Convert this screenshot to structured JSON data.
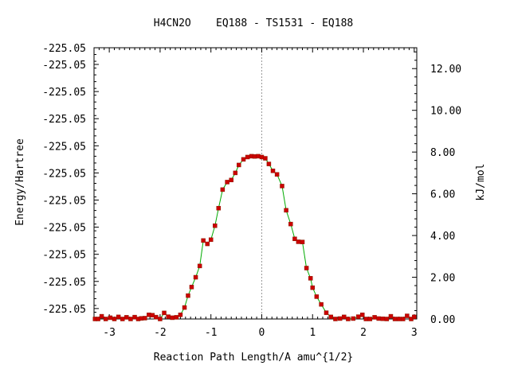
{
  "chart_data": {
    "type": "line",
    "title": "H4CN2O    EQ188 - TS1531 - EQ188",
    "xlabel": "Reaction Path Length/A amu^{1/2}",
    "ylabel_left": "Energy/Hartree",
    "ylabel_right": "kJ/mol",
    "xlim": [
      -3.3,
      3.05
    ],
    "ylim_right": [
      0,
      13.0
    ],
    "x_ticks": [
      -3,
      -2,
      -1,
      0,
      1,
      2,
      3
    ],
    "x_tick_labels": [
      "-3",
      "-2",
      "-1",
      "0",
      "1",
      "2",
      "3"
    ],
    "left_tick_values": [
      0.5,
      1.8,
      3.1,
      4.4,
      5.7,
      7.0,
      8.3,
      9.6,
      10.9,
      12.2,
      13.0
    ],
    "left_tick_labels": [
      "-225.05",
      "-225.05",
      "-225.05",
      "-225.05",
      "-225.05",
      "-225.05",
      "-225.05",
      "-225.05",
      "-225.05",
      "-225.05",
      "-225.05"
    ],
    "right_ticks": [
      0,
      2,
      4,
      6,
      8,
      10,
      12
    ],
    "right_tick_labels": [
      "0.00",
      "2.00",
      "4.00",
      "6.00",
      "8.00",
      "10.00",
      "12.00"
    ],
    "ts_x": 0.0,
    "series": [
      {
        "line_color": "#00aa00",
        "marker_color": "#cc0000",
        "x": [
          -3.28,
          -3.22,
          -3.15,
          -3.07,
          -2.98,
          -2.9,
          -2.82,
          -2.74,
          -2.66,
          -2.58,
          -2.5,
          -2.43,
          -2.37,
          -2.3,
          -2.22,
          -2.15,
          -2.08,
          -2.0,
          -1.92,
          -1.84,
          -1.76,
          -1.68,
          -1.6,
          -1.52,
          -1.45,
          -1.38,
          -1.3,
          -1.22,
          -1.15,
          -1.07,
          -1.0,
          -0.92,
          -0.85,
          -0.77,
          -0.68,
          -0.6,
          -0.52,
          -0.45,
          -0.36,
          -0.28,
          -0.2,
          -0.14,
          -0.07,
          0.0,
          0.07,
          0.14,
          0.22,
          0.3,
          0.4,
          0.48,
          0.57,
          0.65,
          0.72,
          0.8,
          0.88,
          0.96,
          1.0,
          1.08,
          1.17,
          1.27,
          1.36,
          1.45,
          1.54,
          1.62,
          1.7,
          1.8,
          1.9,
          1.98,
          2.05,
          2.13,
          2.22,
          2.3,
          2.38,
          2.46,
          2.54,
          2.62,
          2.7,
          2.78,
          2.86,
          2.94,
          3.0
        ],
        "y": [
          0.0,
          0.0,
          0.13,
          0.0,
          0.06,
          0.0,
          0.1,
          0.0,
          0.08,
          0.0,
          0.09,
          0.0,
          0.03,
          0.04,
          0.2,
          0.18,
          0.09,
          0.0,
          0.29,
          0.11,
          0.06,
          0.08,
          0.2,
          0.55,
          1.12,
          1.53,
          2.0,
          2.54,
          3.76,
          3.6,
          3.8,
          4.47,
          5.31,
          6.2,
          6.56,
          6.66,
          7.0,
          7.38,
          7.65,
          7.76,
          7.8,
          7.79,
          7.8,
          7.76,
          7.7,
          7.43,
          7.1,
          6.93,
          6.37,
          5.21,
          4.55,
          3.84,
          3.7,
          3.69,
          2.44,
          1.95,
          1.5,
          1.07,
          0.7,
          0.3,
          0.1,
          0.0,
          0.02,
          0.1,
          0.0,
          0.02,
          0.11,
          0.2,
          0.0,
          0.0,
          0.08,
          0.02,
          0.01,
          0.0,
          0.13,
          0.0,
          0.0,
          0.0,
          0.15,
          0.0,
          0.1
        ]
      }
    ]
  }
}
